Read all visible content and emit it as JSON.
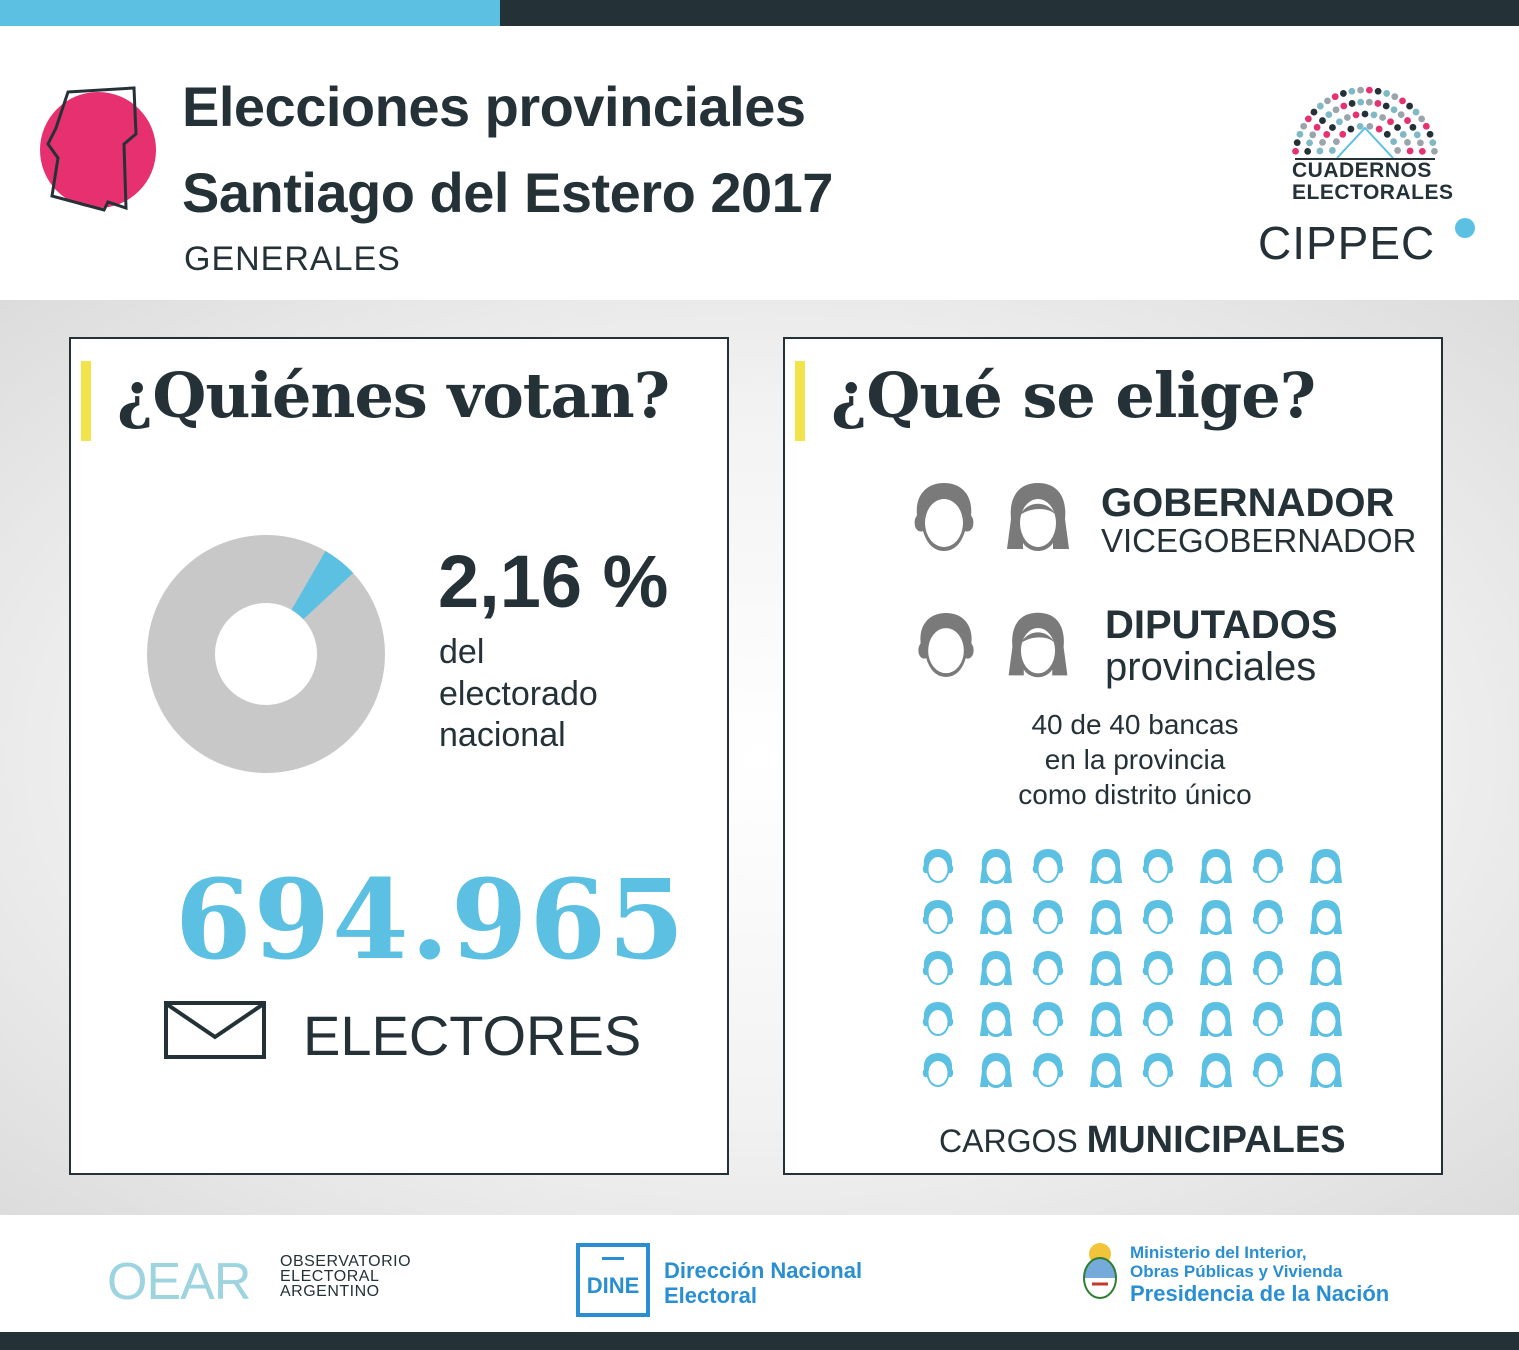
{
  "header": {
    "title_line1": "Elecciones provinciales",
    "title_line2": "Santiago del Estero 2017",
    "subtitle": "GENERALES",
    "cuadernos_line1": "CUADERNOS",
    "cuadernos_line2": "ELECTORALES",
    "cippec": "CIPPEC",
    "province_icon": "santiago-del-estero-map-icon"
  },
  "quienes": {
    "title": "¿Quiénes votan?",
    "percent": "2,16 %",
    "percent_value": 2.16,
    "percent_label_line1": "del",
    "percent_label_line2": "electorado",
    "percent_label_line3": "nacional",
    "electores_count": "694.965",
    "electores_label": "ELECTORES",
    "envelope_icon": "envelope-icon"
  },
  "que_se_elige": {
    "title": "¿Qué se elige?",
    "role1_title": "GOBERNADOR",
    "role1_sub": "VICEGOBERNADOR",
    "role2_title": "DIPUTADOS",
    "role2_sub": "provinciales",
    "bancas_line1": "40 de 40 bancas",
    "bancas_line2": "en la provincia",
    "bancas_line3": "como distrito único",
    "seats_count": 40,
    "cargos_prefix": "CARGOS",
    "cargos_bold": "MUNICIPALES"
  },
  "footer": {
    "oear_mark": "OEAR",
    "oear_line1": "OBSERVATORIO",
    "oear_line2": "ELECTORAL",
    "oear_line3": "ARGENTINO",
    "dine_badge": "DINE",
    "dne_line1": "Dirección Nacional",
    "dne_line2": "Electoral",
    "ministerio_line1": "Ministerio del Interior,",
    "ministerio_line2": "Obras Públicas y Vivienda",
    "ministerio_line3": "Presidencia de la Nación"
  },
  "colors": {
    "dark": "#243238",
    "accent_blue": "#5bc0e2",
    "pink": "#e7306f",
    "yellow": "#f2e34b",
    "grey_icon": "#7a7a7a",
    "donut_grey": "#c8c8c8",
    "dne_blue": "#2a8fd2"
  }
}
